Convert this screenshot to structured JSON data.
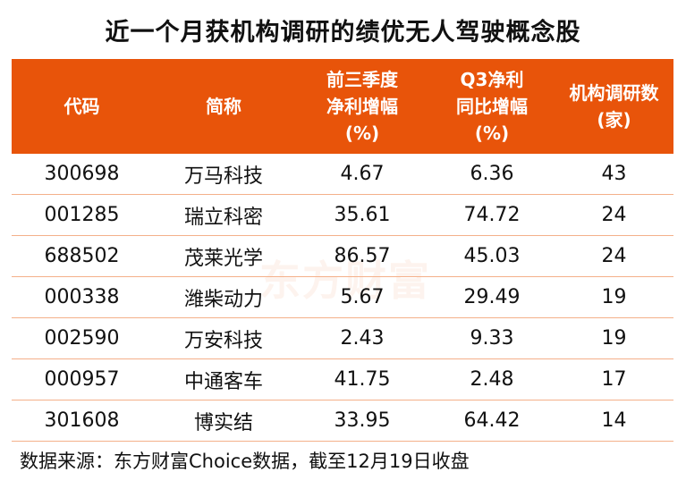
{
  "title": "近一个月获机构调研的绩优无人驾驶概念股",
  "watermark": "东方财富",
  "footer": "数据来源：东方财富Choice数据，截至12月19日收盘",
  "colors": {
    "header_bg": "#E8540A",
    "header_text": "#FFFFFF",
    "row_divider": "#F4B08A"
  },
  "chart_data": {
    "type": "table",
    "columns": [
      "代码",
      "简称",
      "前三季度\n净利增幅\n(%)",
      "Q3净利\n同比增幅\n(%)",
      "机构调研数\n(家)"
    ],
    "rows": [
      [
        "300698",
        "万马科技",
        "4.67",
        "6.36",
        "43"
      ],
      [
        "001285",
        "瑞立科密",
        "35.61",
        "74.72",
        "24"
      ],
      [
        "688502",
        "茂莱光学",
        "86.57",
        "45.03",
        "24"
      ],
      [
        "000338",
        "潍柴动力",
        "5.67",
        "29.49",
        "19"
      ],
      [
        "002590",
        "万安科技",
        "2.43",
        "9.33",
        "19"
      ],
      [
        "000957",
        "中通客车",
        "41.75",
        "2.48",
        "17"
      ],
      [
        "301608",
        "博实结",
        "33.95",
        "64.42",
        "14"
      ]
    ]
  }
}
